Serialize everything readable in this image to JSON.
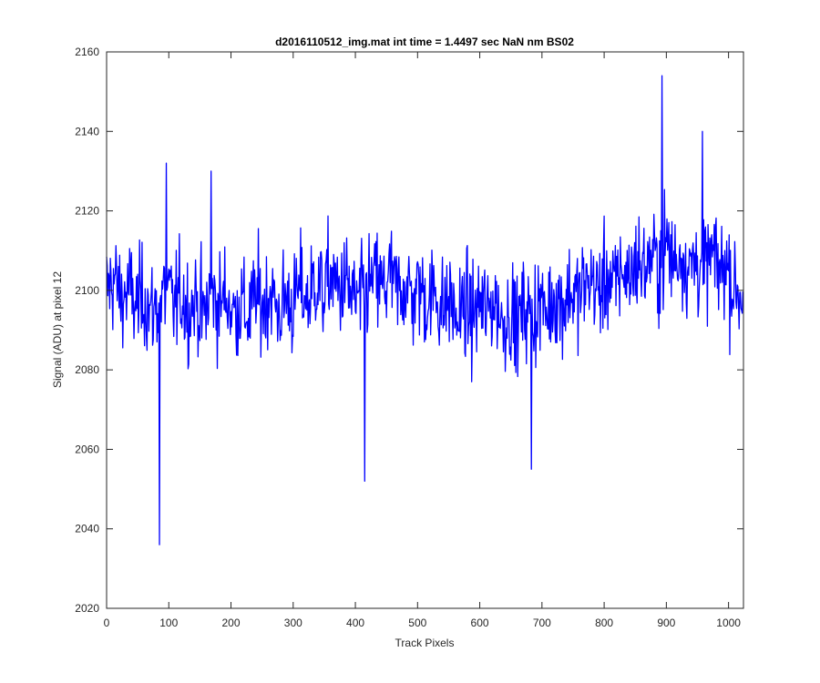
{
  "chart_data": {
    "type": "line",
    "title": "d2016110512_img.mat int time = 1.4497 sec  NaN nm BS02",
    "xlabel": "Track Pixels",
    "ylabel": "Signal (ADU) at pixel 12",
    "xlim": [
      0,
      1024
    ],
    "ylim": [
      2020,
      2160
    ],
    "xticks": [
      0,
      100,
      200,
      300,
      400,
      500,
      600,
      700,
      800,
      900,
      1000
    ],
    "yticks": [
      2020,
      2040,
      2060,
      2080,
      2100,
      2120,
      2140,
      2160
    ],
    "grid": false,
    "line_color": "#0000ff",
    "series": [
      {
        "x": [
          0,
          12,
          24,
          36,
          48,
          60,
          72,
          84,
          96,
          108,
          120,
          132,
          144,
          156,
          168,
          180,
          192,
          204,
          216,
          228,
          240,
          252,
          264,
          276,
          288,
          300,
          312,
          324,
          336,
          348,
          360,
          372,
          384,
          396,
          408,
          420,
          432,
          444,
          456,
          468,
          480,
          492,
          504,
          516,
          528,
          540,
          552,
          564,
          576,
          588,
          600,
          612,
          624,
          636,
          648,
          660,
          672,
          684,
          696,
          708,
          720,
          732,
          744,
          756,
          768,
          780,
          792,
          804,
          816,
          828,
          840,
          852,
          864,
          876,
          888,
          900,
          912,
          924,
          936,
          948,
          960,
          972,
          984,
          996,
          1008,
          1020
        ],
        "y": [
          2100,
          2103,
          2098,
          2100,
          2096,
          2099,
          2094,
          2097,
          2100,
          2096,
          2099,
          2095,
          2098,
          2093,
          2100,
          2096,
          2099,
          2094,
          2097,
          2093,
          2099,
          2096,
          2100,
          2094,
          2098,
          2096,
          2101,
          2097,
          2103,
          2099,
          2104,
          2100,
          2102,
          2098,
          2097,
          2101,
          2103,
          2100,
          2104,
          2099,
          2102,
          2098,
          2101,
          2097,
          2100,
          2095,
          2098,
          2092,
          2096,
          2093,
          2097,
          2094,
          2098,
          2092,
          2095,
          2091,
          2096,
          2093,
          2097,
          2094,
          2099,
          2096,
          2100,
          2098,
          2101,
          2103,
          2099,
          2104,
          2100,
          2106,
          2103,
          2108,
          2105,
          2109,
          2106,
          2112,
          2107,
          2110,
          2105,
          2108,
          2104,
          2109,
          2105,
          2107,
          2101,
          2099
        ]
      }
    ],
    "extremes": [
      {
        "x": 85,
        "y": 2036
      },
      {
        "x": 96,
        "y": 2132
      },
      {
        "x": 168,
        "y": 2130
      },
      {
        "x": 415,
        "y": 2052
      },
      {
        "x": 683,
        "y": 2055
      },
      {
        "x": 893,
        "y": 2154
      },
      {
        "x": 958,
        "y": 2140
      }
    ]
  }
}
